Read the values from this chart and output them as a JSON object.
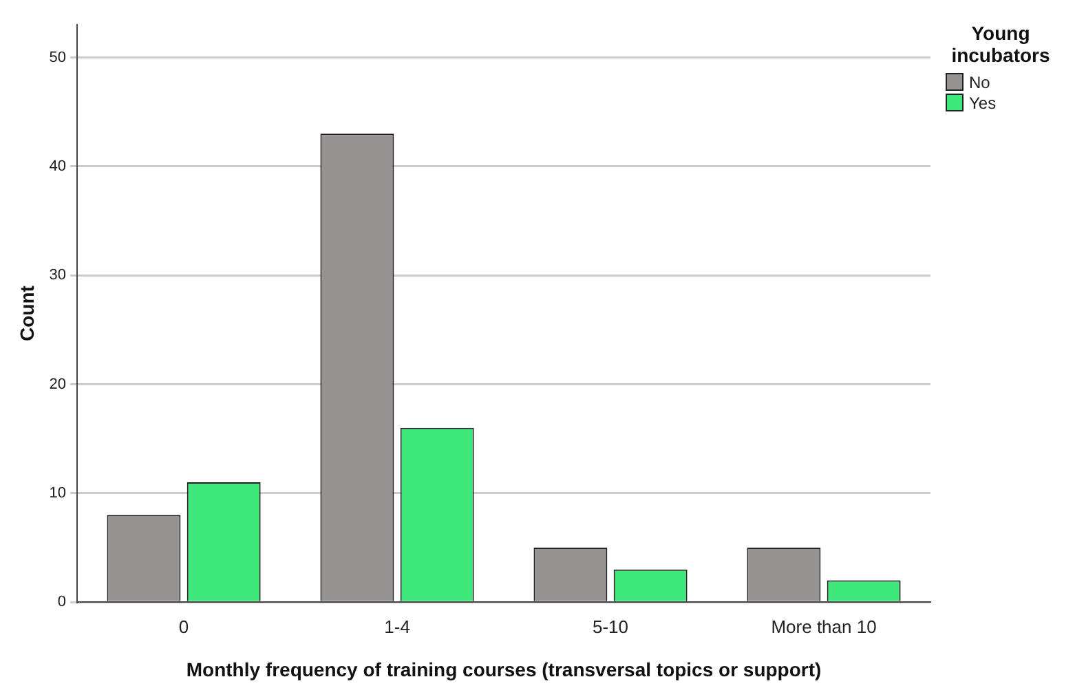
{
  "chart_data": {
    "type": "bar",
    "xlabel": "Monthly frequency of training courses (transversal topics or support)",
    "ylabel": "Count",
    "legend_title": "Young incubators",
    "categories": [
      "0",
      "1-4",
      "5-10",
      "More than 10"
    ],
    "series": [
      {
        "name": "No",
        "color": "#979392",
        "values": [
          8,
          43,
          5,
          5
        ]
      },
      {
        "name": "Yes",
        "color": "#3ee87a",
        "values": [
          11,
          16,
          3,
          2
        ]
      }
    ],
    "ylim": [
      0,
      53
    ],
    "yticks": [
      0,
      10,
      20,
      30,
      40,
      50
    ],
    "grid": "y",
    "legend": "top right"
  }
}
